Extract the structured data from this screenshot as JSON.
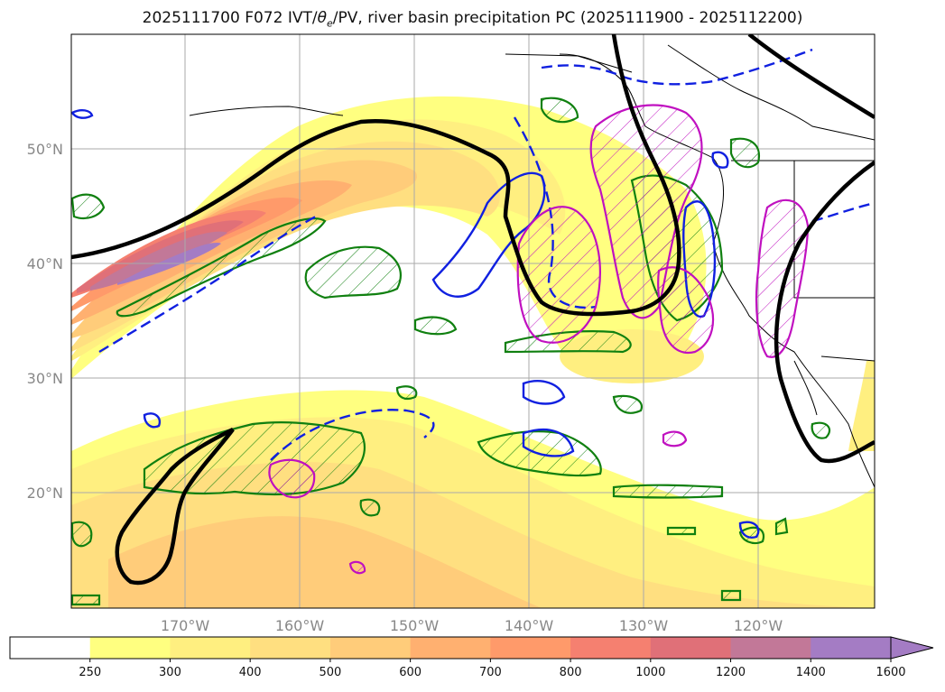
{
  "title": {
    "prefix": "2025111700 F072 IVT/",
    "theta": "θ",
    "theta_sub": "e",
    "suffix": "/PV, river basin precipitation PC (2025111900 - 2025112200)"
  },
  "lat_labels": [
    "50°N",
    "40°N",
    "30°N",
    "20°N"
  ],
  "lon_labels": [
    "170°W",
    "160°W",
    "150°W",
    "140°W",
    "130°W",
    "120°W"
  ],
  "colorbar": {
    "ticks": [
      "250",
      "300",
      "400",
      "500",
      "600",
      "700",
      "800",
      "1000",
      "1200",
      "1400",
      "1600"
    ],
    "colors": [
      "#ffffff",
      "#ffff80",
      "#ffef80",
      "#ffdf80",
      "#ffcc7a",
      "#ffb070",
      "#ff9a6a",
      "#f58070",
      "#e07078",
      "#c27898",
      "#a47cc4"
    ]
  },
  "legend_colors": {
    "pv_contour": "#000000",
    "theta_e_dashed": "#1020e0",
    "theta_e_solid": "#1020e0",
    "green_contour": "#108010",
    "precip_pc": "#c010c0"
  }
}
